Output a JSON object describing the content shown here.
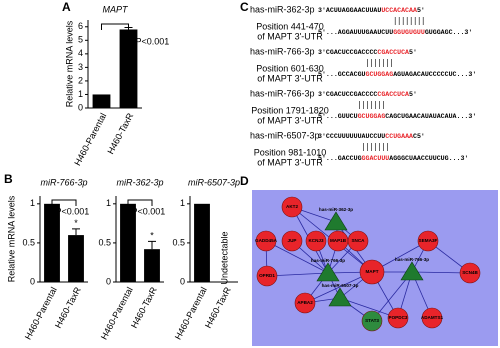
{
  "panel_labels": [
    "A",
    "B",
    "C",
    "D"
  ],
  "chart_data": [
    {
      "type": "bar",
      "title": "MAPT",
      "ylabel": "Relative mRNA levels",
      "categories": [
        "H460-Parental",
        "H460-TaxR"
      ],
      "values": [
        1,
        5.8
      ],
      "errors": [
        null,
        0.15
      ],
      "color": "#000000",
      "ylim": [
        0,
        6.5
      ],
      "yticks": [
        0,
        1,
        2,
        3,
        4,
        5,
        6
      ],
      "annotation": "*P<0.001"
    },
    {
      "type": "bar",
      "title": "miR-766-3p",
      "ylabel": "Relative mRNA levels",
      "categories": [
        "H460-Parental",
        "H460-TaxR"
      ],
      "values": [
        1,
        0.6
      ],
      "errors": [
        null,
        0.08
      ],
      "color": "#000000",
      "ylim": [
        0,
        1.1
      ],
      "yticks": [
        0,
        0.5,
        1
      ],
      "annotation": "*P<0.001",
      "marker": "*"
    },
    {
      "type": "bar",
      "title": "miR-362-3p",
      "categories": [
        "H460-Parental",
        "H460-TaxR"
      ],
      "values": [
        1,
        0.42
      ],
      "errors": [
        null,
        0.1
      ],
      "color": "#000000",
      "ylim": [
        0,
        1.1
      ],
      "yticks": [
        0,
        0.5,
        1
      ],
      "annotation": "*P<0.001",
      "marker": "*"
    },
    {
      "type": "bar",
      "title": "miR-6507-3p",
      "categories": [
        "H460-Parental",
        "H460-TaxR"
      ],
      "values": [
        1,
        null
      ],
      "errors": [
        null,
        null
      ],
      "color": "#000000",
      "ylim": [
        0,
        1.1
      ],
      "yticks": [
        0,
        0.5,
        1
      ],
      "annotation": "Undetectable",
      "annotation_color": "#e8242a"
    }
  ],
  "panel_c": {
    "blocks": [
      {
        "mirna": "has-miR-362-3p",
        "mirna_seq": [
          "3'ACUUAGGAACUUAU",
          "UCCACACAA",
          "5'"
        ],
        "position": "Position 441-470",
        "utr": "of MAPT 3'-UTR",
        "target_seq": [
          "5'...AGGAUUUGAAUCUU",
          "GGUGUGUU",
          "GUGGAGC...3'"
        ]
      },
      {
        "mirna": "has-miR-766-3p",
        "mirna_seq": [
          "3'CGACUCCGACCCC",
          "CGACCUCA",
          "5'"
        ],
        "position": "Position 601-630",
        "utr": "of MAPT 3'-UTR",
        "target_seq": [
          "5'...GCCACGU",
          "GCUGGAG",
          "AGUAGACAUCCCCCUC...3'"
        ]
      },
      {
        "mirna": "has-miR-766-3p",
        "mirna_seq": [
          "3'CGACUCCGACCCC",
          "CGACCUCA",
          "5'"
        ],
        "position": "Position 1791-1820",
        "utr": "of MAPT 3'-UTR",
        "target_seq": [
          "5'...GUUCU",
          "GCUGGAG",
          "CAGCUGAACAUAUACAUA...3'"
        ]
      },
      {
        "mirna": "has-miR-6507-3p",
        "mirna_seq": [
          "3'CCCUUUUUUAUCCUU",
          "CCUGAAA",
          "C5'"
        ],
        "position": "Position 981-1010",
        "utr": "of MAPT 3'-UTR",
        "target_seq": [
          "5'...GACCUG",
          "GGACUUU",
          "AGGGCUAACCUUCUG...3'"
        ]
      }
    ]
  },
  "panel_d": {
    "nodes": [
      {
        "label": "AKT2"
      },
      {
        "label": "has-miR-362-3p"
      },
      {
        "label": "GADD45A"
      },
      {
        "label": "JUP"
      },
      {
        "label": "KCNJ3"
      },
      {
        "label": "MAP1B"
      },
      {
        "label": "SNCA"
      },
      {
        "label": "OPRD1"
      },
      {
        "label": "has-miR-766-3p"
      },
      {
        "label": "MAPT"
      },
      {
        "label": "has-miR-766-3p"
      },
      {
        "label": "SEMA3F"
      },
      {
        "label": "SCN4B"
      },
      {
        "label": "APBA2"
      },
      {
        "label": "has-miR-6507-3p"
      },
      {
        "label": "STAT3"
      },
      {
        "label": "POPDC3"
      },
      {
        "label": "ADAMTS1"
      }
    ]
  }
}
